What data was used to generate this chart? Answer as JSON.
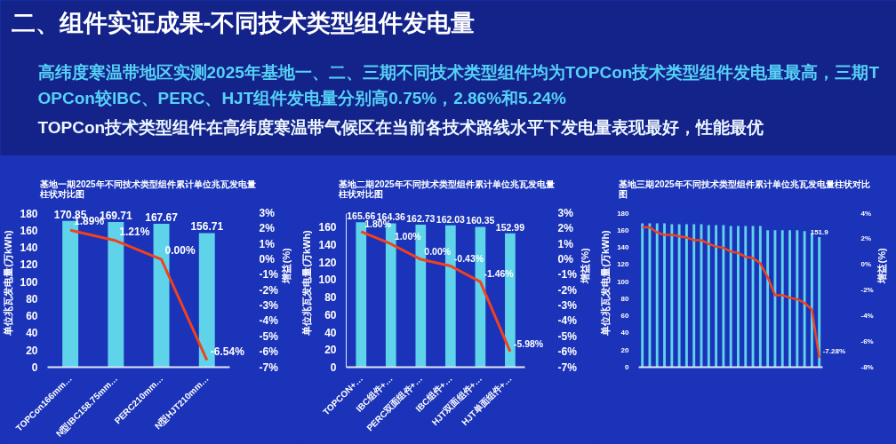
{
  "chart_data": [
    {
      "type": "other",
      "title": "二、组件实证成果-不同技术类型组件发电量",
      "annotations": [
        "高纬度寒温带地区实测2025年基地一、二、三期不同技术类型组件均为TOPCon技术类型组件发电量最高，三期TOPCon较IBC、PERC、HJT组件发电量分别高0.75%，2.86%和5.24%",
        "TOPCon技术类型组件在高纬度寒温带气候区在当前各技术路线水平下发电量表现最好，性能最优"
      ]
    },
    {
      "type": "bar",
      "title": "基地一期2025年不同技术类型组件累计单位兆瓦发电量柱状对比图",
      "ylabel": "单位兆瓦发电量(万kWh)",
      "y2label": "增益(%)",
      "categories": [
        "TOPCon166mm…",
        "N型IBC158.75mm…",
        "PERC210mm…",
        "N型HJT210mm…"
      ],
      "series": [
        {
          "type": "bar",
          "color": "#5fd3ea",
          "values": [
            170.85,
            169.71,
            167.67,
            156.71
          ],
          "value_labels": [
            "170.85",
            "169.71",
            "167.67",
            "156.71"
          ]
        },
        {
          "type": "line",
          "axis": "y2",
          "color": "#f2411c",
          "values": [
            1.89,
            1.21,
            0.0,
            -6.54
          ],
          "value_labels": [
            "1.89%",
            "1.21%",
            "0.00%",
            "-6.54%"
          ]
        }
      ],
      "ylim": [
        0,
        180
      ],
      "yticks": [
        0,
        20,
        40,
        60,
        80,
        100,
        120,
        140,
        160,
        180
      ],
      "y2lim": [
        -7,
        3
      ],
      "y2ticks": [
        {
          "value": -7,
          "label": "-7%"
        },
        {
          "value": -6,
          "label": "-6%"
        },
        {
          "value": -5,
          "label": "-5%"
        },
        {
          "value": -4,
          "label": "-4%"
        },
        {
          "value": -3,
          "label": "-3%"
        },
        {
          "value": -2,
          "label": "-2%"
        },
        {
          "value": -1,
          "label": "-1%"
        },
        {
          "value": 0,
          "label": "0%"
        },
        {
          "value": 1,
          "label": "1%"
        },
        {
          "value": 2,
          "label": "2%"
        },
        {
          "value": 3,
          "label": "3%"
        }
      ]
    },
    {
      "type": "bar",
      "title": "基地二期2025年不同技术类型组件累计单位兆瓦发电量柱状对比图",
      "ylabel": "单位兆瓦发电量(万kWh)",
      "y2label": "增益(%)",
      "categories": [
        "TOPCON+…",
        "IBC组件+…",
        "PERC双面组件+…",
        "IBC组件+…",
        "HJT双面组件+…",
        "HJT单面组件+…"
      ],
      "series": [
        {
          "type": "bar",
          "color": "#5fd3ea",
          "values": [
            165.66,
            164.36,
            162.73,
            162.03,
            160.35,
            152.99
          ],
          "value_labels": [
            "165.66",
            "164.36",
            "162.73",
            "162.03",
            "160.35",
            "152.99"
          ]
        },
        {
          "type": "line",
          "axis": "y2",
          "color": "#f2411c",
          "values": [
            1.8,
            1.0,
            0.0,
            -0.43,
            -1.46,
            -5.98
          ],
          "value_labels": [
            "1.80%",
            "1.00%",
            "0.00%",
            "-0.43%",
            "-1.46%",
            "-5.98%"
          ]
        }
      ],
      "ylim": [
        0,
        176
      ],
      "yticks": [
        0,
        20,
        40,
        60,
        80,
        100,
        120,
        140,
        160
      ],
      "y2lim": [
        -7,
        3
      ],
      "y2ticks": [
        {
          "value": -7,
          "label": "-7%"
        },
        {
          "value": -6,
          "label": "-6%"
        },
        {
          "value": -5,
          "label": "-5%"
        },
        {
          "value": -4,
          "label": "-4%"
        },
        {
          "value": -3,
          "label": "-3%"
        },
        {
          "value": -2,
          "label": "-2%"
        },
        {
          "value": -1,
          "label": "-1%"
        },
        {
          "value": 0,
          "label": "0%"
        },
        {
          "value": 1,
          "label": "1%"
        },
        {
          "value": 2,
          "label": "2%"
        },
        {
          "value": 3,
          "label": "3%"
        }
      ]
    },
    {
      "type": "bar",
      "title": "基地三期2025年不同技术类型组件累计单位兆瓦发电量柱状对比图",
      "ylabel": "单位兆瓦发电量(万kWh)",
      "y2label": "增益(%)",
      "categories": [
        null,
        null,
        null,
        null,
        null,
        null,
        null,
        null,
        null,
        null,
        null,
        null,
        null,
        null,
        null,
        null,
        null,
        null,
        null,
        null,
        null,
        null,
        null,
        null,
        null
      ],
      "series": [
        {
          "type": "bar",
          "color": "#5fd3ea",
          "values": [
            168,
            168,
            168,
            168,
            167,
            167,
            167,
            167,
            167,
            166,
            166,
            166,
            165,
            165,
            165,
            165,
            165,
            160,
            160,
            160,
            160,
            160,
            159,
            157,
            151.9
          ],
          "value_labels": [
            null,
            null,
            null,
            null,
            null,
            null,
            null,
            null,
            null,
            null,
            null,
            null,
            null,
            null,
            null,
            null,
            null,
            null,
            null,
            null,
            null,
            null,
            null,
            null,
            "151.9"
          ]
        },
        {
          "type": "line",
          "axis": "y2",
          "color": "#f2411c",
          "values": [
            2.9,
            2.9,
            2.5,
            2.3,
            2.3,
            2.2,
            2.1,
            1.9,
            1.9,
            1.6,
            1.4,
            1.3,
            1.0,
            0.9,
            0.6,
            0.5,
            0.1,
            -1.0,
            -2.4,
            -2.4,
            -2.6,
            -2.7,
            -3.0,
            -3.5,
            -7.28
          ],
          "value_labels": [
            null,
            null,
            null,
            null,
            null,
            null,
            null,
            null,
            null,
            null,
            null,
            null,
            null,
            null,
            null,
            null,
            null,
            null,
            null,
            null,
            null,
            null,
            null,
            null,
            "-7.28%"
          ]
        }
      ],
      "ylim": [
        0,
        180
      ],
      "yticks": [
        0,
        20,
        40,
        60,
        80,
        100,
        120,
        140,
        160,
        180
      ],
      "y2lim": [
        -8,
        4
      ],
      "y2ticks": [
        {
          "value": -8,
          "label": "-8%"
        },
        {
          "value": -6,
          "label": "-6%"
        },
        {
          "value": -4,
          "label": "-4%"
        },
        {
          "value": -2,
          "label": "-2%"
        },
        {
          "value": 0,
          "label": "0%"
        },
        {
          "value": 2,
          "label": "2%"
        },
        {
          "value": 4,
          "label": "4%"
        }
      ]
    }
  ]
}
